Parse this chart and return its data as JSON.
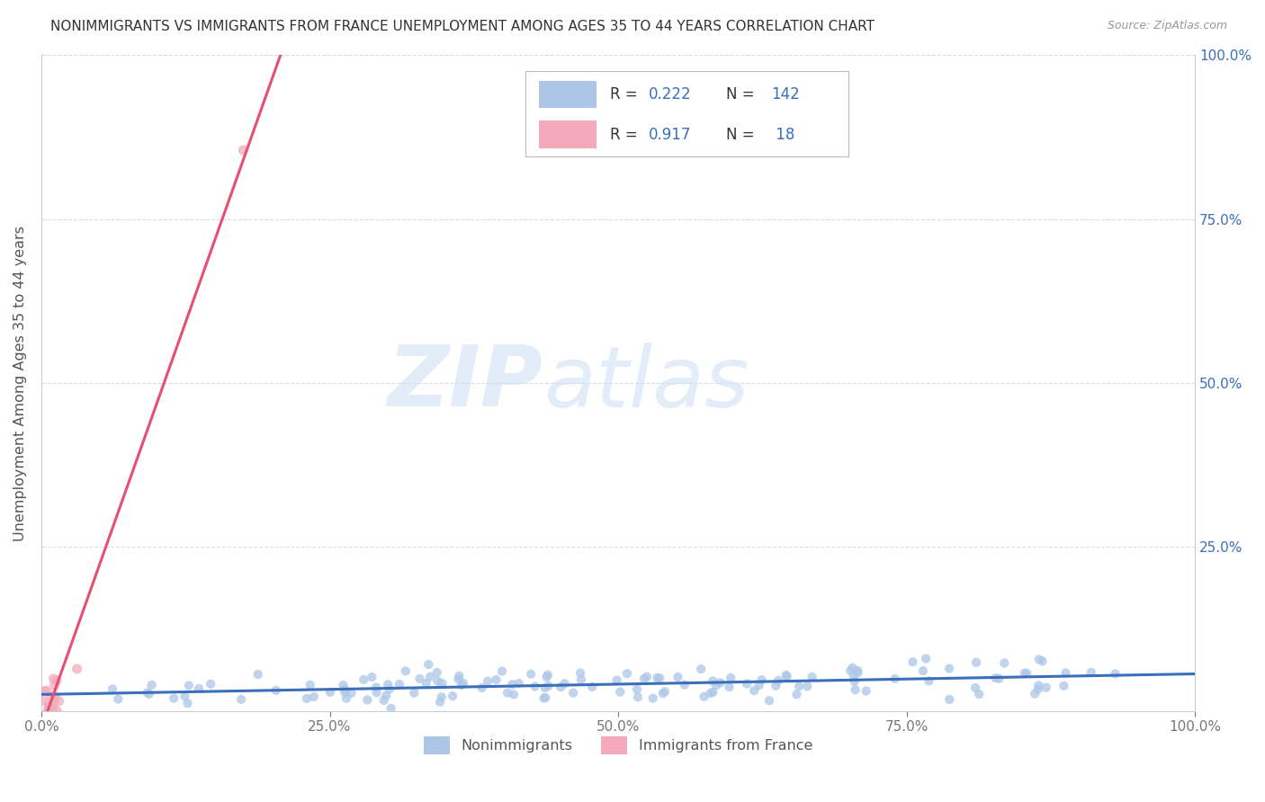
{
  "title": "NONIMMIGRANTS VS IMMIGRANTS FROM FRANCE UNEMPLOYMENT AMONG AGES 35 TO 44 YEARS CORRELATION CHART",
  "source": "Source: ZipAtlas.com",
  "ylabel": "Unemployment Among Ages 35 to 44 years",
  "legend_label_1": "Nonimmigrants",
  "legend_label_2": "Immigrants from France",
  "R1": 0.222,
  "N1": 142,
  "R2": 0.917,
  "N2": 18,
  "color1": "#adc6e8",
  "color2": "#f5aabb",
  "line_color1": "#3a6fbb",
  "line_color2": "#e85070",
  "dash_color": "#cccccc",
  "xlim": [
    0.0,
    1.0
  ],
  "ylim": [
    0.0,
    1.0
  ],
  "xticks": [
    0.0,
    0.25,
    0.5,
    0.75,
    1.0
  ],
  "yticks": [
    0.0,
    0.25,
    0.5,
    0.75,
    1.0
  ],
  "xtick_labels": [
    "0.0%",
    "25.0%",
    "50.0%",
    "75.0%",
    "100.0%"
  ],
  "ytick_labels": [
    "0.0%",
    "25.0%",
    "50.0%",
    "75.0%",
    "100.0%"
  ],
  "right_ytick_labels": [
    "",
    "25.0%",
    "50.0%",
    "75.0%",
    "100.0%"
  ],
  "watermark_zip": "ZIP",
  "watermark_atlas": "atlas",
  "background_color": "#ffffff",
  "grid_color": "#dddddd",
  "blue_text": "#3a6fbb",
  "legend_text_color": "#333333"
}
